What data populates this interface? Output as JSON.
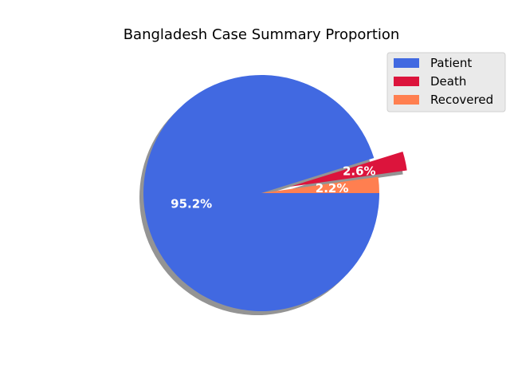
{
  "chart_data": {
    "type": "pie",
    "title": "Bangladesh Case Summary Proportion",
    "slices": [
      {
        "label": "Patient",
        "percent": 95.2,
        "percent_label": "95.2%",
        "color": "#4169e1",
        "exploded": false
      },
      {
        "label": "Death",
        "percent": 2.6,
        "percent_label": "2.6%",
        "color": "#dc143c",
        "exploded": true
      },
      {
        "label": "Recovered",
        "percent": 2.2,
        "percent_label": "2.2%",
        "color": "#ff7f50",
        "exploded": false
      }
    ],
    "start_angle_deg": 0,
    "direction": "clockwise",
    "shadow": true,
    "legend_placement": "top-right"
  }
}
